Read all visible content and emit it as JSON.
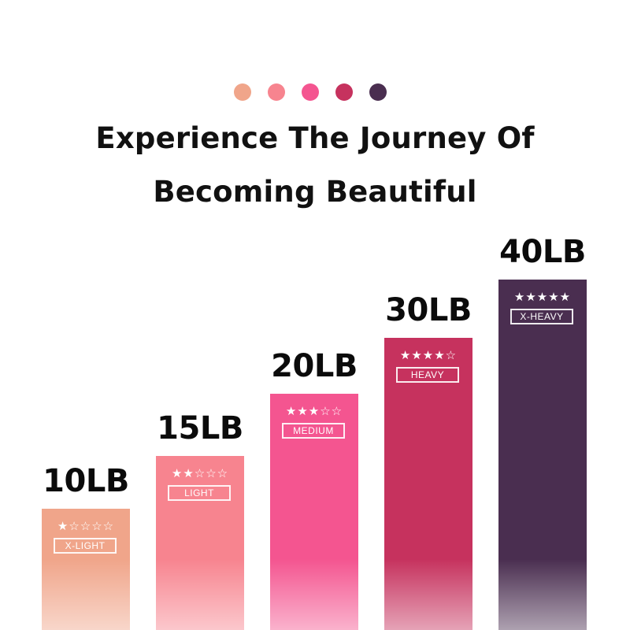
{
  "header": {
    "dot_colors": [
      "#F0A58A",
      "#F7848F",
      "#F45590",
      "#C6325E",
      "#4A2E50"
    ],
    "title_line1": "Experience The Journey Of",
    "title_line2": "Becoming Beautiful"
  },
  "chart_data": {
    "type": "bar",
    "categories": [
      "X-LIGHT",
      "LIGHT",
      "MEDIUM",
      "HEAVY",
      "X-HEAVY"
    ],
    "values": [
      10,
      15,
      20,
      30,
      40
    ],
    "value_labels": [
      "10LB",
      "15LB",
      "20LB",
      "30LB",
      "40LB"
    ],
    "star_ratings": [
      1,
      2,
      3,
      4,
      5
    ],
    "colors": [
      "#F0A58A",
      "#F7848F",
      "#F45590",
      "#C6325E",
      "#4A2E50"
    ],
    "unit": "LB"
  }
}
